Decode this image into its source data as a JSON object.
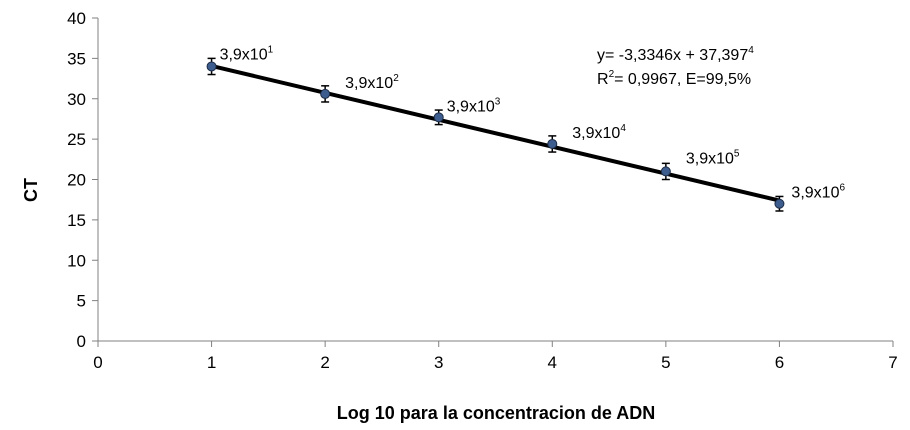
{
  "chart_data": {
    "type": "scatter",
    "title": "",
    "xlabel": "Log 10 para la concentracion de ADN",
    "ylabel": "CT",
    "xlim": [
      0,
      7
    ],
    "ylim": [
      0,
      40
    ],
    "xticks": [
      "0",
      "1",
      "2",
      "3",
      "4",
      "5",
      "6",
      "7"
    ],
    "yticks": [
      "0",
      "5",
      "10",
      "15",
      "20",
      "25",
      "30",
      "35",
      "40"
    ],
    "grid": false,
    "legend": "none",
    "series": [
      {
        "x": [
          1,
          2,
          3,
          4,
          5,
          6
        ],
        "y": [
          34.0,
          30.6,
          27.7,
          24.4,
          21.0,
          17.0
        ],
        "error": [
          1.0,
          1.0,
          0.9,
          1.0,
          1.0,
          0.9
        ],
        "labels": [
          {
            "base": "3,9x10",
            "exp": "1"
          },
          {
            "base": "3,9x10",
            "exp": "2"
          },
          {
            "base": "3,9x10",
            "exp": "3"
          },
          {
            "base": "3,9x10",
            "exp": "4"
          },
          {
            "base": "3,9x10",
            "exp": "5"
          },
          {
            "base": "3,9x10",
            "exp": "6"
          }
        ],
        "marker_color": "#3d5d8e"
      }
    ],
    "trendline": {
      "slope": -3.3346,
      "intercept": 37.397,
      "x_range": [
        1,
        6
      ],
      "color": "#000000"
    },
    "annotation": {
      "line1": "y= -3,3346x + 37,397",
      "line1_sup": "4",
      "line2_pre": "R",
      "line2_sup": "2",
      "line2_post": "= 0,9967, E=99,5%"
    }
  }
}
